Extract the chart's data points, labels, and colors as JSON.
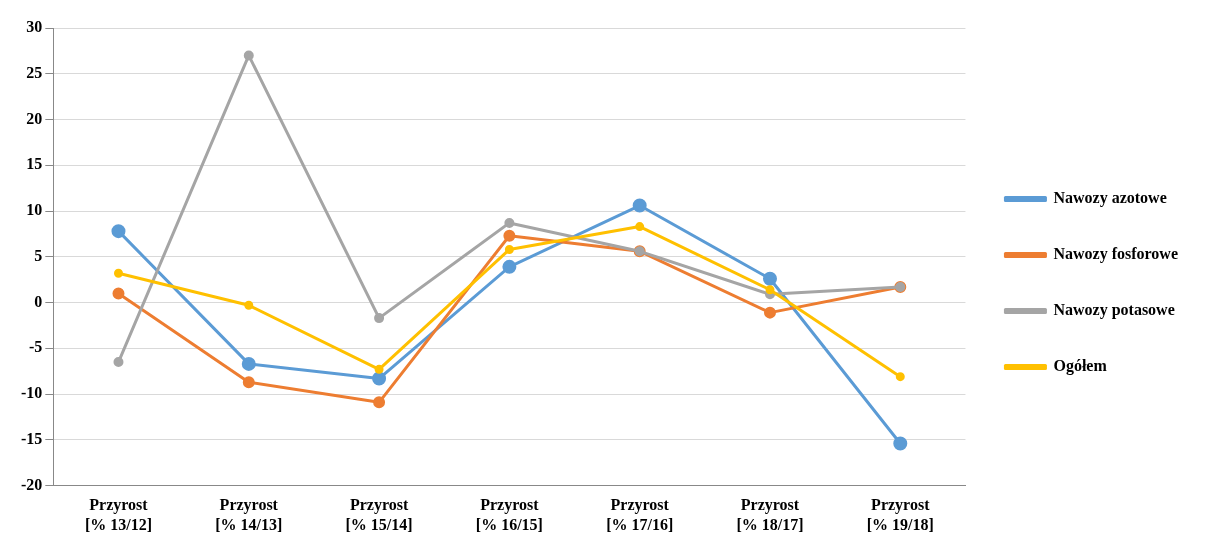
{
  "chart_data": {
    "type": "line",
    "categories": [
      "Przyrost\n[% 13/12]",
      "Przyrost\n[% 14/13]",
      "Przyrost\n[% 15/14]",
      "Przyrost\n[% 16/15]",
      "Przyrost\n[% 17/16]",
      "Przyrost\n[% 18/17]",
      "Przyrost\n[% 19/18]"
    ],
    "series": [
      {
        "name": "Nawozy azotowe",
        "color": "#5b9bd5",
        "values": [
          7.8,
          -6.7,
          -8.3,
          3.9,
          10.6,
          2.6,
          -15.4
        ]
      },
      {
        "name": "Nawozy fosforowe",
        "color": "#ed7d31",
        "values": [
          1.0,
          -8.7,
          -10.9,
          7.3,
          5.6,
          -1.1,
          1.7
        ]
      },
      {
        "name": "Nawozy potasowe",
        "color": "#a5a5a5",
        "values": [
          -6.5,
          27.0,
          -1.7,
          8.7,
          5.6,
          0.9,
          1.7
        ]
      },
      {
        "name": "Ogółem",
        "color": "#ffc000",
        "values": [
          3.2,
          -0.3,
          -7.3,
          5.8,
          8.3,
          1.4,
          -8.1
        ]
      }
    ],
    "ylim": [
      -20,
      30
    ],
    "yticks": [
      -20,
      -15,
      -10,
      -5,
      0,
      5,
      10,
      15,
      20,
      25,
      30
    ],
    "grid": "y",
    "legend": "right",
    "marker": "circle",
    "line_style": "solid"
  }
}
